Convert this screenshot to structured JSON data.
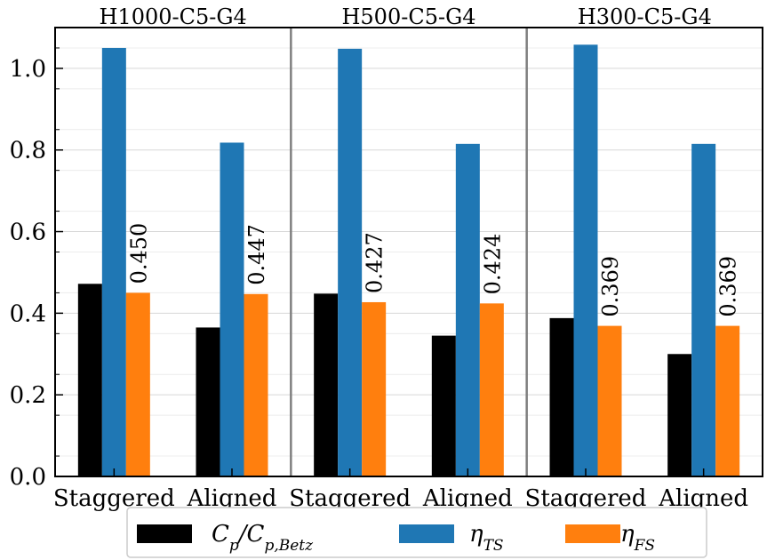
{
  "chart_data": {
    "type": "bar",
    "ylim": [
      0,
      1.1
    ],
    "yticks": [
      "0.0",
      "0.2",
      "0.4",
      "0.6",
      "0.8",
      "1.0"
    ],
    "ytick_values": [
      0,
      0.2,
      0.4,
      0.6,
      0.8,
      1.0
    ],
    "grid": "horizontal",
    "legend_position": "bottom-center",
    "panels": [
      {
        "title": "H1000-C5-G4",
        "categories": [
          "Staggered",
          "Aligned"
        ],
        "series": [
          {
            "key": "cp",
            "values": [
              0.472,
              0.365
            ]
          },
          {
            "key": "ts",
            "values": [
              1.05,
              0.818
            ]
          },
          {
            "key": "fs",
            "values": [
              0.45,
              0.447
            ],
            "labels": [
              "0.450",
              "0.447"
            ]
          }
        ]
      },
      {
        "title": "H500-C5-G4",
        "categories": [
          "Staggered",
          "Aligned"
        ],
        "series": [
          {
            "key": "cp",
            "values": [
              0.448,
              0.345
            ]
          },
          {
            "key": "ts",
            "values": [
              1.048,
              0.815
            ]
          },
          {
            "key": "fs",
            "values": [
              0.427,
              0.424
            ],
            "labels": [
              "0.427",
              "0.424"
            ]
          }
        ]
      },
      {
        "title": "H300-C5-G4",
        "categories": [
          "Staggered",
          "Aligned"
        ],
        "series": [
          {
            "key": "cp",
            "values": [
              0.388,
              0.3
            ]
          },
          {
            "key": "ts",
            "values": [
              1.058,
              0.815
            ]
          },
          {
            "key": "fs",
            "values": [
              0.369,
              0.369
            ],
            "labels": [
              "0.369",
              "0.369"
            ]
          }
        ]
      }
    ],
    "legend": [
      {
        "key": "cp",
        "name_main": "C",
        "name_sub": "p",
        "name_mid": "/C",
        "name_sub2": "p,Betz",
        "color": "#000000"
      },
      {
        "key": "ts",
        "name_main": "η",
        "name_sub": "TS",
        "color": "#1f77b4"
      },
      {
        "key": "fs",
        "name_main": "η",
        "name_sub": "FS",
        "color": "#ff7f0e"
      }
    ]
  }
}
